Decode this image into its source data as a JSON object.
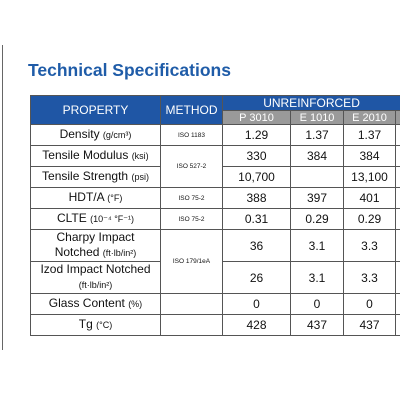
{
  "header": {
    "title": "Technical Specifications"
  },
  "table": {
    "columns": [
      "PROPERTY",
      "METHOD"
    ],
    "group": "UNREINFORCED",
    "grades": [
      "P 3010",
      "E 1010",
      "E 2010"
    ],
    "rows": [
      {
        "property": "Density",
        "unit": "(g/cm³)",
        "method": "ISO 1183",
        "values": [
          "1.29",
          "1.37",
          "1.37"
        ]
      },
      {
        "property": "Tensile Modulus",
        "unit": "(ksi)",
        "method": "ISO 527-2",
        "method_rows": 2,
        "values": [
          "330",
          "384",
          "384"
        ]
      },
      {
        "property": "Tensile Strength",
        "unit": "(psi)",
        "values": [
          "10,700",
          null,
          "13,100"
        ]
      },
      {
        "property": "HDT/A",
        "unit": "(°F)",
        "method": "ISO 75-2",
        "values": [
          "388",
          "397",
          "401"
        ]
      },
      {
        "property": "CLTE",
        "unit": "(10⁻⁴ °F⁻¹)",
        "method": "ISO 75-2",
        "values": [
          "0.31",
          "0.29",
          "0.29"
        ]
      },
      {
        "property": "Charpy Impact Notched",
        "unit": "(ft·lb/in²)",
        "method": "ISO 179/1eA",
        "method_rows": 2,
        "values": [
          "36",
          "3.1",
          "3.3"
        ]
      },
      {
        "property": "Izod Impact Notched",
        "unit": "(ft·lb/in²)",
        "values": [
          "26",
          "3.1",
          "3.3"
        ]
      },
      {
        "property": "Glass Content",
        "unit": "(%)",
        "method": null,
        "values": [
          "0",
          "0",
          "0"
        ]
      },
      {
        "property": "Tg",
        "unit": "(°C)",
        "method": null,
        "values": [
          "428",
          "437",
          "437"
        ]
      }
    ]
  }
}
